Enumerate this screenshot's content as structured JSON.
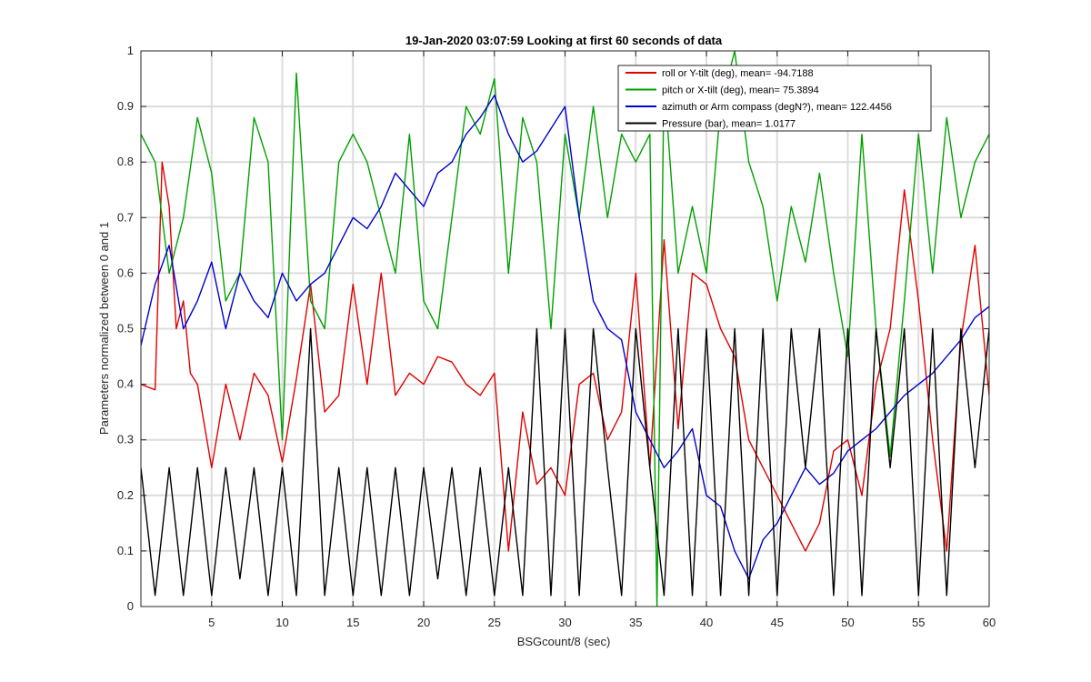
{
  "chart_data": {
    "type": "line",
    "title": "19-Jan-2020 03:07:59 Looking at first 60 seconds of data",
    "xlabel": "BSGcount/8 (sec)",
    "ylabel": "Parameters normalized between 0 and 1",
    "xlim": [
      0,
      60
    ],
    "ylim": [
      0,
      1
    ],
    "xticks": [
      5,
      10,
      15,
      20,
      25,
      30,
      35,
      40,
      45,
      50,
      55,
      60
    ],
    "xtick_labels": [
      "5",
      "10",
      "15",
      "20",
      "25",
      "30",
      "35",
      "40",
      "45",
      "50",
      "55",
      "60"
    ],
    "yticks": [
      0,
      0.1,
      0.2,
      0.3,
      0.4,
      0.5,
      0.6,
      0.7,
      0.8,
      0.9,
      1
    ],
    "ytick_labels": [
      "0",
      "0.1",
      "0.2",
      "0.3",
      "0.4",
      "0.5",
      "0.6",
      "0.7",
      "0.8",
      "0.9",
      "1"
    ],
    "grid": true,
    "legend_position": "top-right",
    "series": [
      {
        "name": "roll or Y-tilt (deg), mean= -94.7188",
        "color": "#e00000",
        "x": [
          0,
          1,
          1.5,
          2,
          2.5,
          3,
          3.5,
          4,
          5,
          6,
          7,
          8,
          9,
          10,
          11,
          12,
          13,
          14,
          15,
          16,
          17,
          18,
          19,
          20,
          21,
          22,
          23,
          24,
          25,
          26,
          27,
          28,
          29,
          30,
          31,
          32,
          33,
          34,
          35,
          36,
          37,
          38,
          39,
          40,
          41,
          42,
          43,
          44,
          45,
          46,
          47,
          48,
          49,
          50,
          51,
          52,
          53,
          54,
          55,
          56,
          57,
          58,
          59,
          60
        ],
        "values": [
          0.4,
          0.39,
          0.8,
          0.72,
          0.5,
          0.55,
          0.42,
          0.4,
          0.25,
          0.4,
          0.3,
          0.42,
          0.38,
          0.26,
          0.41,
          0.58,
          0.35,
          0.38,
          0.58,
          0.4,
          0.6,
          0.38,
          0.42,
          0.4,
          0.45,
          0.44,
          0.4,
          0.38,
          0.42,
          0.1,
          0.35,
          0.22,
          0.25,
          0.2,
          0.4,
          0.42,
          0.3,
          0.35,
          0.6,
          0.25,
          0.66,
          0.32,
          0.6,
          0.58,
          0.5,
          0.45,
          0.3,
          0.25,
          0.2,
          0.15,
          0.1,
          0.15,
          0.28,
          0.3,
          0.2,
          0.4,
          0.5,
          0.75,
          0.55,
          0.3,
          0.1,
          0.48,
          0.65,
          0.38
        ]
      },
      {
        "name": "pitch or X-tilt (deg), mean= 75.3894",
        "color": "#00a000",
        "x": [
          0,
          1,
          2,
          3,
          4,
          5,
          6,
          7,
          8,
          9,
          10,
          11,
          12,
          13,
          14,
          15,
          16,
          17,
          18,
          19,
          20,
          21,
          22,
          23,
          24,
          25,
          26,
          27,
          28,
          29,
          30,
          31,
          32,
          33,
          34,
          35,
          36,
          36.5,
          37,
          38,
          39,
          40,
          41,
          42,
          43,
          44,
          45,
          46,
          47,
          48,
          49,
          50,
          51,
          52,
          53,
          54,
          55,
          56,
          57,
          58,
          59,
          60
        ],
        "values": [
          0.85,
          0.8,
          0.6,
          0.7,
          0.88,
          0.78,
          0.55,
          0.6,
          0.88,
          0.8,
          0.3,
          0.96,
          0.55,
          0.5,
          0.8,
          0.85,
          0.8,
          0.7,
          0.6,
          0.85,
          0.55,
          0.5,
          0.7,
          0.9,
          0.85,
          0.95,
          0.6,
          0.88,
          0.8,
          0.5,
          0.85,
          0.7,
          0.9,
          0.7,
          0.85,
          0.8,
          0.85,
          0.0,
          0.95,
          0.6,
          0.72,
          0.6,
          0.9,
          1.0,
          0.8,
          0.72,
          0.55,
          0.72,
          0.62,
          0.78,
          0.6,
          0.45,
          0.85,
          0.5,
          0.27,
          0.55,
          0.85,
          0.6,
          0.88,
          0.7,
          0.8,
          0.85
        ]
      },
      {
        "name": "azimuth or Arm compass (degN?), mean= 122.4456",
        "color": "#0000d0",
        "x": [
          0,
          1,
          2,
          3,
          4,
          5,
          6,
          7,
          8,
          9,
          10,
          11,
          12,
          13,
          14,
          15,
          16,
          17,
          18,
          19,
          20,
          21,
          22,
          23,
          24,
          25,
          26,
          27,
          28,
          29,
          30,
          31,
          32,
          33,
          34,
          35,
          36,
          37,
          38,
          39,
          40,
          41,
          42,
          43,
          44,
          45,
          46,
          47,
          48,
          49,
          50,
          51,
          52,
          53,
          54,
          55,
          56,
          57,
          58,
          59,
          60
        ],
        "values": [
          0.47,
          0.58,
          0.65,
          0.5,
          0.55,
          0.62,
          0.5,
          0.6,
          0.55,
          0.52,
          0.6,
          0.55,
          0.58,
          0.6,
          0.65,
          0.7,
          0.68,
          0.72,
          0.78,
          0.75,
          0.72,
          0.78,
          0.8,
          0.85,
          0.88,
          0.92,
          0.85,
          0.8,
          0.82,
          0.86,
          0.9,
          0.7,
          0.55,
          0.5,
          0.48,
          0.35,
          0.3,
          0.25,
          0.28,
          0.32,
          0.2,
          0.18,
          0.1,
          0.05,
          0.12,
          0.15,
          0.2,
          0.25,
          0.22,
          0.24,
          0.28,
          0.3,
          0.32,
          0.35,
          0.38,
          0.4,
          0.42,
          0.45,
          0.48,
          0.52,
          0.54
        ]
      },
      {
        "name": "Pressure (bar), mean= 1.0177",
        "color": "#000000",
        "x": [
          0,
          1,
          2,
          3,
          4,
          5,
          6,
          7,
          8,
          9,
          10,
          11,
          12,
          13,
          14,
          15,
          16,
          17,
          18,
          19,
          20,
          21,
          22,
          23,
          24,
          25,
          26,
          27,
          28,
          29,
          30,
          31,
          32,
          33,
          34,
          35,
          36,
          37,
          38,
          39,
          40,
          41,
          42,
          43,
          44,
          45,
          46,
          47,
          48,
          49,
          50,
          51,
          52,
          53,
          54,
          55,
          56,
          57,
          58,
          59,
          60
        ],
        "values": [
          0.25,
          0.02,
          0.25,
          0.02,
          0.25,
          0.02,
          0.25,
          0.05,
          0.25,
          0.02,
          0.25,
          0.02,
          0.5,
          0.02,
          0.25,
          0.02,
          0.25,
          0.02,
          0.25,
          0.02,
          0.25,
          0.05,
          0.25,
          0.02,
          0.25,
          0.02,
          0.25,
          0.02,
          0.5,
          0.02,
          0.5,
          0.02,
          0.5,
          0.25,
          0.02,
          0.5,
          0.25,
          0.02,
          0.5,
          0.02,
          0.5,
          0.02,
          0.5,
          0.02,
          0.5,
          0.02,
          0.5,
          0.25,
          0.5,
          0.02,
          0.5,
          0.02,
          0.5,
          0.25,
          0.5,
          0.02,
          0.5,
          0.02,
          0.5,
          0.25,
          0.5
        ]
      }
    ]
  }
}
